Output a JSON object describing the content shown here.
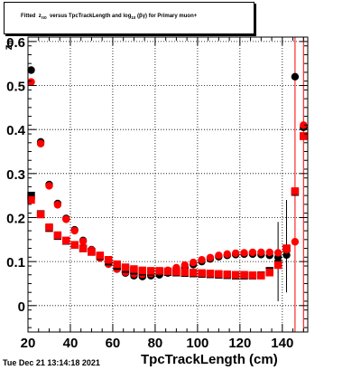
{
  "title": {
    "prefix": "Fitted",
    "var": "z",
    "var_sub": "π",
    "var_sub2": "0",
    "middle": "versus TpcTrackLength and log",
    "log_sub": "10",
    "log_arg": "(βγ)",
    "suffix": "for Primary muon+"
  },
  "timestamp": "Tue Dec 21 13:14:18 2021",
  "chart_data": {
    "type": "scatter",
    "title": "Fitted z_π0 versus TpcTrackLength and log_10(βγ) for Primary muon+",
    "xlabel": "TpcTrackLength (cm)",
    "ylabel": "z_π",
    "xlim": [
      20,
      152
    ],
    "ylim": [
      -0.06,
      0.61
    ],
    "xticks": [
      20,
      40,
      60,
      80,
      100,
      120,
      140
    ],
    "yticks": [
      0,
      0.1,
      0.2,
      0.3,
      0.4,
      0.5,
      0.6
    ],
    "ytick_labels": [
      "0",
      "0.1",
      "0.2",
      "0.3",
      "0.4",
      "0.5",
      "0.6"
    ],
    "grid": true,
    "series": [
      {
        "marker": "circle",
        "color": "#000000",
        "points": [
          [
            21.5,
            0.535
          ],
          [
            26,
            0.372
          ],
          [
            30,
            0.275
          ],
          [
            34,
            0.232
          ],
          [
            38,
            0.198
          ],
          [
            42,
            0.172
          ],
          [
            46,
            0.148
          ],
          [
            50,
            0.127
          ],
          [
            54,
            0.11
          ],
          [
            58,
            0.095
          ],
          [
            62,
            0.083
          ],
          [
            66,
            0.074
          ],
          [
            70,
            0.068
          ],
          [
            74,
            0.066
          ],
          [
            78,
            0.068
          ],
          [
            82,
            0.07
          ],
          [
            86,
            0.074
          ],
          [
            90,
            0.08
          ],
          [
            94,
            0.086
          ],
          [
            98,
            0.093
          ],
          [
            102,
            0.1
          ],
          [
            106,
            0.106
          ],
          [
            110,
            0.111
          ],
          [
            114,
            0.114
          ],
          [
            118,
            0.116
          ],
          [
            122,
            0.117
          ],
          [
            126,
            0.117
          ],
          [
            130,
            0.116
          ],
          [
            134,
            0.114
          ],
          [
            138,
            0.11
          ],
          [
            142,
            0.115
          ],
          [
            146,
            0.52
          ],
          [
            150,
            0.405
          ]
        ]
      },
      {
        "marker": "circle",
        "color": "#ff0000",
        "points": [
          [
            21.5,
            0.508
          ],
          [
            26,
            0.368
          ],
          [
            30,
            0.272
          ],
          [
            34,
            0.229
          ],
          [
            38,
            0.196
          ],
          [
            42,
            0.17
          ],
          [
            46,
            0.146
          ],
          [
            50,
            0.126
          ],
          [
            54,
            0.108
          ],
          [
            58,
            0.094
          ],
          [
            62,
            0.083
          ],
          [
            66,
            0.076
          ],
          [
            70,
            0.072
          ],
          [
            74,
            0.071
          ],
          [
            78,
            0.073
          ],
          [
            82,
            0.076
          ],
          [
            86,
            0.08
          ],
          [
            90,
            0.086
          ],
          [
            94,
            0.092
          ],
          [
            98,
            0.098
          ],
          [
            102,
            0.104
          ],
          [
            106,
            0.109
          ],
          [
            110,
            0.114
          ],
          [
            114,
            0.117
          ],
          [
            118,
            0.119
          ],
          [
            122,
            0.12
          ],
          [
            126,
            0.121
          ],
          [
            130,
            0.121
          ],
          [
            134,
            0.121
          ],
          [
            138,
            0.12
          ],
          [
            142,
            0.127
          ],
          [
            146,
            0.145
          ],
          [
            150,
            0.41
          ]
        ]
      },
      {
        "marker": "square",
        "color": "#000000",
        "points": [
          [
            21.5,
            0.25
          ],
          [
            26,
            0.208
          ],
          [
            30,
            0.176
          ],
          [
            34,
            0.158
          ],
          [
            38,
            0.147
          ],
          [
            42,
            0.138
          ],
          [
            46,
            0.13
          ],
          [
            50,
            0.122
          ],
          [
            54,
            0.112
          ],
          [
            58,
            0.1
          ],
          [
            62,
            0.09
          ],
          [
            66,
            0.083
          ],
          [
            70,
            0.079
          ],
          [
            74,
            0.077
          ],
          [
            78,
            0.077
          ],
          [
            82,
            0.077
          ],
          [
            86,
            0.076
          ],
          [
            90,
            0.075
          ],
          [
            94,
            0.074
          ],
          [
            98,
            0.073
          ],
          [
            102,
            0.072
          ],
          [
            106,
            0.071
          ],
          [
            110,
            0.07
          ],
          [
            114,
            0.069
          ],
          [
            118,
            0.068
          ],
          [
            122,
            0.068
          ],
          [
            126,
            0.068
          ],
          [
            130,
            0.069
          ],
          [
            134,
            0.079
          ],
          [
            138,
            0.095
          ],
          [
            142,
            0.13
          ],
          [
            146,
            0.258
          ],
          [
            150,
            0.385
          ]
        ]
      },
      {
        "marker": "square",
        "color": "#ff0000",
        "points": [
          [
            21.5,
            0.24
          ],
          [
            26,
            0.207
          ],
          [
            30,
            0.178
          ],
          [
            34,
            0.16
          ],
          [
            38,
            0.148
          ],
          [
            42,
            0.138
          ],
          [
            46,
            0.13
          ],
          [
            50,
            0.122
          ],
          [
            54,
            0.114
          ],
          [
            58,
            0.104
          ],
          [
            62,
            0.094
          ],
          [
            66,
            0.087
          ],
          [
            70,
            0.083
          ],
          [
            74,
            0.08
          ],
          [
            78,
            0.079
          ],
          [
            82,
            0.079
          ],
          [
            86,
            0.078
          ],
          [
            90,
            0.077
          ],
          [
            94,
            0.076
          ],
          [
            98,
            0.075
          ],
          [
            102,
            0.074
          ],
          [
            106,
            0.073
          ],
          [
            110,
            0.072
          ],
          [
            114,
            0.071
          ],
          [
            118,
            0.07
          ],
          [
            122,
            0.07
          ],
          [
            126,
            0.069
          ],
          [
            130,
            0.068
          ],
          [
            134,
            0.075
          ],
          [
            138,
            0.092
          ],
          [
            142,
            0.13
          ],
          [
            146,
            0.26
          ],
          [
            150,
            0.385
          ]
        ]
      }
    ],
    "error_bars": [
      {
        "x": 138,
        "low": 0.01,
        "high": 0.19,
        "color": "#000000"
      },
      {
        "x": 142,
        "low": 0.03,
        "high": 0.24,
        "color": "#000000"
      },
      {
        "x": 146,
        "low": -0.06,
        "high": 0.61,
        "color": "#ff0000"
      },
      {
        "x": 150,
        "low": -0.06,
        "high": 0.61,
        "color": "#ff0000"
      }
    ]
  }
}
